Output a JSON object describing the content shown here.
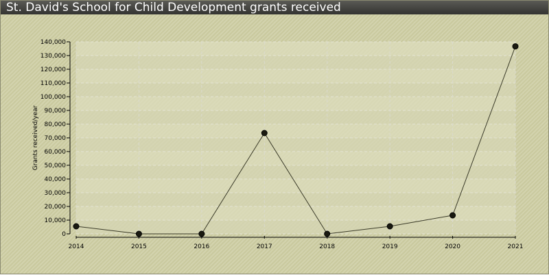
{
  "title": "St. David's School for Child Development grants received",
  "chart_data": {
    "type": "line",
    "title": "St. David's School for Child Development grants received",
    "xlabel": "",
    "ylabel": "Grants received/year",
    "x": [
      "2014",
      "2015",
      "2016",
      "2017",
      "2018",
      "2019",
      "2020",
      "2021"
    ],
    "values": [
      5500,
      0,
      0,
      73500,
      0,
      5500,
      13500,
      136700
    ],
    "ylim": [
      0,
      140000
    ],
    "yticks": [
      0,
      10000,
      20000,
      30000,
      40000,
      50000,
      60000,
      70000,
      80000,
      90000,
      100000,
      110000,
      120000,
      130000,
      140000
    ],
    "ytick_labels": [
      "0",
      "10,000",
      "20,000",
      "30,000",
      "40,000",
      "50,000",
      "60,000",
      "70,000",
      "80,000",
      "90,000",
      "100,000",
      "110,000",
      "120,000",
      "130,000",
      "140,000"
    ],
    "grid": true,
    "colors": {
      "line": "#3a3a28",
      "marker": "#1a1a10"
    }
  }
}
